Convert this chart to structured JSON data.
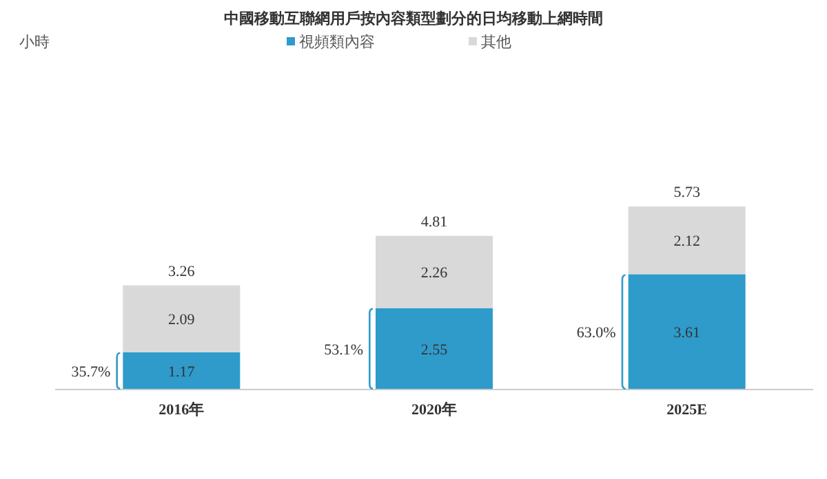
{
  "chart_data": {
    "type": "bar",
    "title": "中國移動互聯網用戶按內容類型劃分的日均移動上網時間",
    "categories": [
      "2016年",
      "2020年",
      "2025E"
    ],
    "stacked": true,
    "series": [
      {
        "name": "視頻類內容",
        "color": "#2e9bca",
        "values": [
          1.17,
          2.55,
          3.61
        ]
      },
      {
        "name": "其他",
        "color": "#d9d9d9",
        "values": [
          2.09,
          2.26,
          2.12
        ]
      }
    ],
    "data_labels": true,
    "totals": [
      "3.26",
      "4.81",
      "5.73"
    ],
    "annotations": [
      "小時",
      "35.7%",
      "53.1%",
      "63.0%"
    ],
    "legend": "top"
  }
}
